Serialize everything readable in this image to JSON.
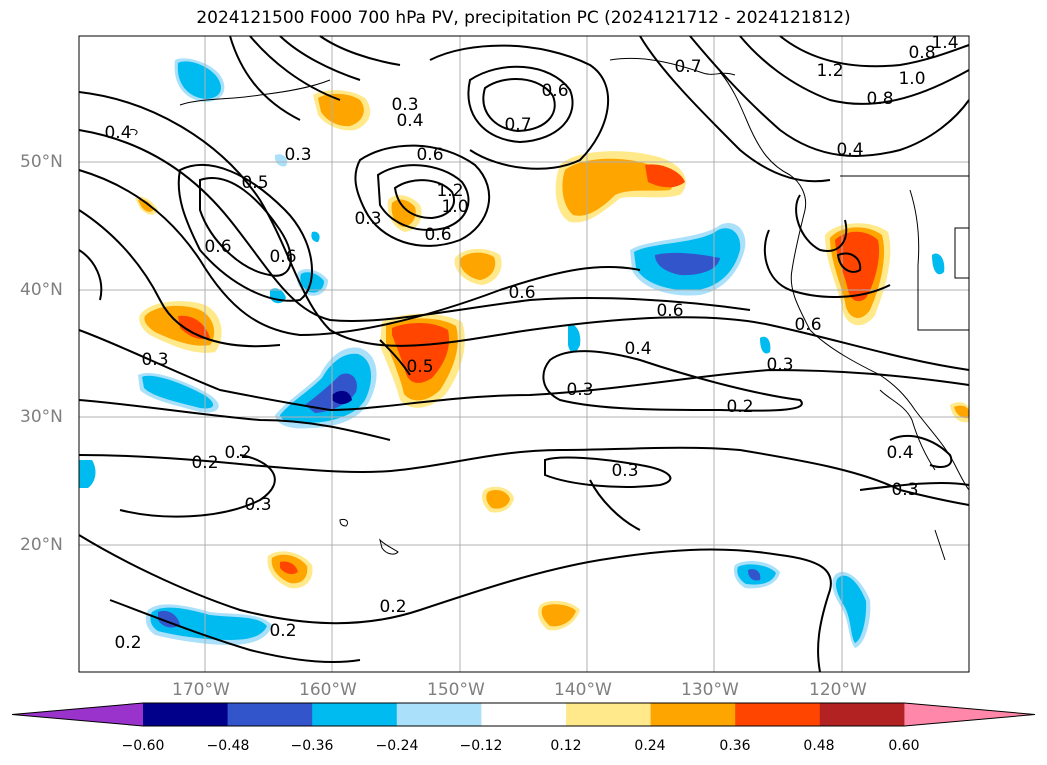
{
  "title": "2024121500 F000 700 hPa PV, precipitation PC (2024121712 - 2024121812)",
  "lat_labels": [
    "50°N",
    "40°N",
    "30°N",
    "20°N"
  ],
  "lon_labels": [
    "170°W",
    "160°W",
    "150°W",
    "140°W",
    "130°W",
    "120°W"
  ],
  "colorbar": {
    "ticks": [
      "−0.60",
      "−0.48",
      "−0.36",
      "−0.24",
      "−0.12",
      "0.12",
      "0.24",
      "0.36",
      "0.48",
      "0.60"
    ],
    "colors": [
      "#9933cc",
      "#00008b",
      "#3355cc",
      "#00bbf0",
      "#aae0fa",
      "#ffffff",
      "#ffe98a",
      "#ffa500",
      "#ff4500",
      "#b22222",
      "#ff88aa"
    ]
  },
  "pv_contour_labels": [
    "0.2",
    "0.2",
    "0.2",
    "0.2",
    "0.2",
    "0.2",
    "0.3",
    "0.3",
    "0.3",
    "0.3",
    "0.3",
    "0.3",
    "0.3",
    "0.3",
    "0.3",
    "0.4",
    "0.4",
    "0.4",
    "0.4",
    "0.4",
    "0.5",
    "0.5",
    "0.6",
    "0.6",
    "0.6",
    "0.6",
    "0.6",
    "0.6",
    "0.6",
    "0.6",
    "0.7",
    "0.7",
    "0.8",
    "0.8",
    "1.0",
    "1.0",
    "1.2",
    "1.2",
    "1.4"
  ]
}
